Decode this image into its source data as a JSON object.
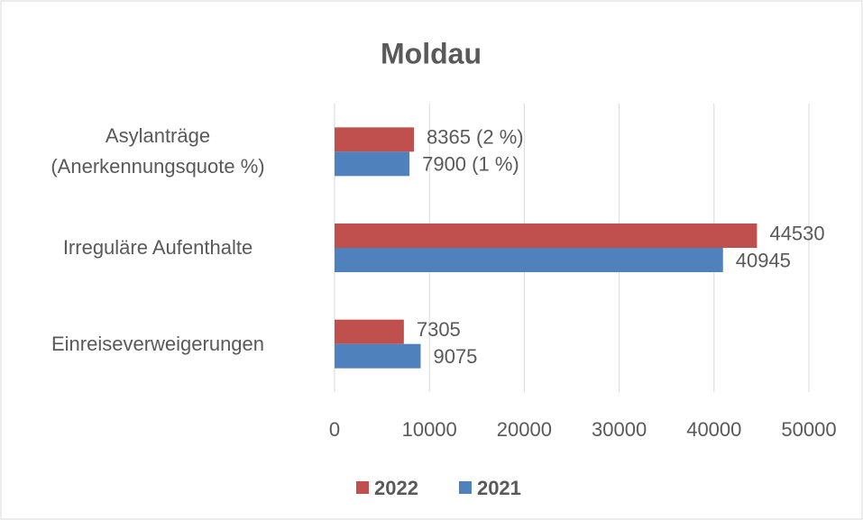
{
  "chart_data": {
    "type": "barh",
    "title": "Moldau",
    "categories": [
      "Asylanträge\n(Anerkennungsquote %)",
      "Irreguläre Aufenthalte",
      "Einreiseverweigerungen"
    ],
    "series": [
      {
        "name": "2022",
        "color": "#c0504d",
        "values": [
          8365,
          44530,
          7305
        ],
        "value_labels": [
          "8365 (2 %)",
          "44530",
          "7305"
        ]
      },
      {
        "name": "2021",
        "color": "#4f81bd",
        "values": [
          7900,
          40945,
          9075
        ],
        "value_labels": [
          "7900 (1 %)",
          "40945",
          "9075"
        ]
      }
    ],
    "xlim": [
      0,
      50000
    ],
    "xticks": [
      0,
      10000,
      20000,
      30000,
      40000,
      50000
    ],
    "grid": true,
    "legend": "bottom"
  }
}
